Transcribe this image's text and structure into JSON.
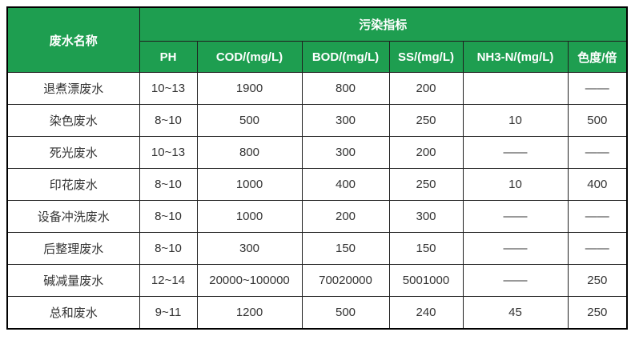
{
  "table": {
    "corner_header": "废水名称",
    "group_header": "污染指标",
    "columns": [
      "PH",
      "COD/(mg/L)",
      "BOD/(mg/L)",
      "SS/(mg/L)",
      "NH3-N/(mg/L)",
      "色度/倍"
    ],
    "rows": [
      {
        "name": "退煮漂废水",
        "values": [
          "10~13",
          "1900",
          "800",
          "200",
          "",
          "——"
        ]
      },
      {
        "name": "染色废水",
        "values": [
          "8~10",
          "500",
          "300",
          "250",
          "10",
          "500"
        ]
      },
      {
        "name": "死光废水",
        "values": [
          "10~13",
          "800",
          "300",
          "200",
          "——",
          "——"
        ]
      },
      {
        "name": "印花废水",
        "values": [
          "8~10",
          "1000",
          "400",
          "250",
          "10",
          "400"
        ]
      },
      {
        "name": "设备冲洗废水",
        "values": [
          "8~10",
          "1000",
          "200",
          "300",
          "——",
          "——"
        ]
      },
      {
        "name": "后整理废水",
        "values": [
          "8~10",
          "300",
          "150",
          "150",
          "——",
          "——"
        ]
      },
      {
        "name": "碱减量废水",
        "values": [
          "12~14",
          "20000~100000",
          "70020000",
          "5001000",
          "——",
          "250"
        ]
      },
      {
        "name": "总和废水",
        "values": [
          "9~11",
          "1200",
          "500",
          "240",
          "45",
          "250"
        ]
      }
    ],
    "colors": {
      "header_bg": "#1e9e50",
      "header_text": "#ffffff",
      "body_text": "#333333",
      "border": "#1f1f1f"
    }
  }
}
